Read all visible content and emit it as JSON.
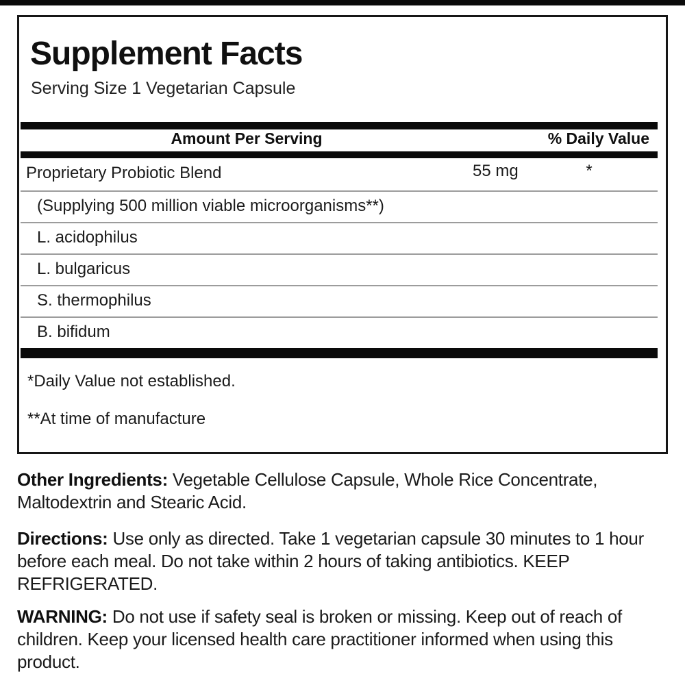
{
  "panel": {
    "title": "Supplement Facts",
    "serving_size": "Serving Size 1 Vegetarian Capsule",
    "table": {
      "amount_header": "Amount Per Serving",
      "dv_header": "% Daily Value",
      "rows": [
        {
          "name": "Proprietary Probiotic Blend",
          "amount": "55 mg",
          "dv": "*"
        },
        {
          "name": "(Supplying 500 million viable microorganisms**)",
          "amount": "",
          "dv": ""
        },
        {
          "name": "L. acidophilus",
          "amount": "",
          "dv": ""
        },
        {
          "name": "L. bulgaricus",
          "amount": "",
          "dv": ""
        },
        {
          "name": "S. thermophilus",
          "amount": "",
          "dv": ""
        },
        {
          "name": "B. bifidum",
          "amount": "",
          "dv": ""
        }
      ]
    },
    "footnotes": {
      "daily_value": "*Daily Value not established.",
      "manufacture": "**At time of manufacture"
    }
  },
  "sections": {
    "other_ingredients": {
      "lead": "Other Ingredients:",
      "text": " Vegetable Cellulose Capsule, Whole Rice Concentrate, Maltodextrin and Stearic Acid."
    },
    "directions": {
      "lead": "Directions:",
      "text": " Use only as directed. Take 1 vegetarian capsule 30 minutes to 1 hour before each meal. Do not take within 2 hours of taking antibiotics. KEEP REFRIGERATED."
    },
    "warning": {
      "lead": "WARNING:",
      "text": " Do not use if safety seal is broken or missing. Keep out of reach of children. Keep your licensed health care practitioner informed when using this product."
    }
  },
  "colors": {
    "rule": "#0a0a0a",
    "separator": "#9c9c9c",
    "text": "#1b1b1b",
    "background": "#ffffff"
  }
}
